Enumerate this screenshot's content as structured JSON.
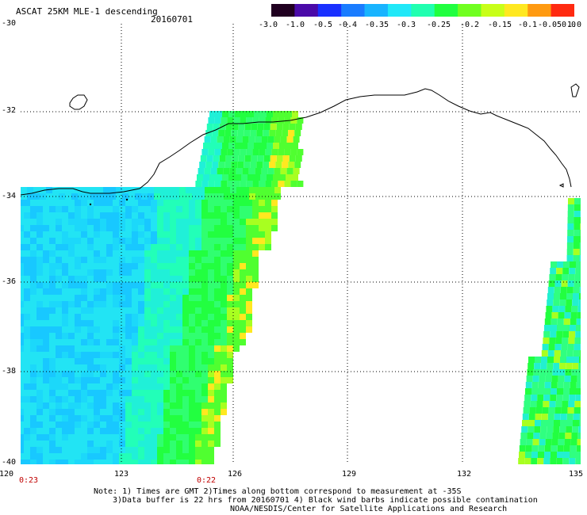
{
  "header": {
    "title": "ASCAT 25KM MLE-1 descending",
    "date": "20160701"
  },
  "colorbar": {
    "labels": [
      "-3.0",
      "-1.0",
      "-0.5",
      "-0.4",
      "-0.35",
      "-0.3",
      "-0.25",
      "-0.2",
      "-0.15",
      "-0.1",
      "-0.05",
      "0.0",
      "1.0"
    ],
    "colors": [
      "#200020",
      "#4a0aa8",
      "#1a30ff",
      "#1a7cff",
      "#18b4ff",
      "#20e8f8",
      "#20ffb0",
      "#20ff40",
      "#70ff20",
      "#c8ff18",
      "#ffe820",
      "#ff9a10",
      "#ff2a10"
    ]
  },
  "axes": {
    "lat_labels": [
      "-30",
      "-32",
      "-34",
      "-36",
      "-38",
      "-40"
    ],
    "lon_labels": [
      "120",
      "123",
      "126",
      "129",
      "132",
      "135"
    ]
  },
  "times": {
    "left": "0:23",
    "middle": "0:22"
  },
  "notes": {
    "line1": "Note: 1) Times are GMT 2)Times along bottom correspond to measurement at -35S",
    "line2": "3)Data buffer is 22 hrs from 20160701 4) Black wind barbs indicate possible contamination",
    "line3": "NOAA/NESDIS/Center for Satellite Applications and Research"
  }
}
